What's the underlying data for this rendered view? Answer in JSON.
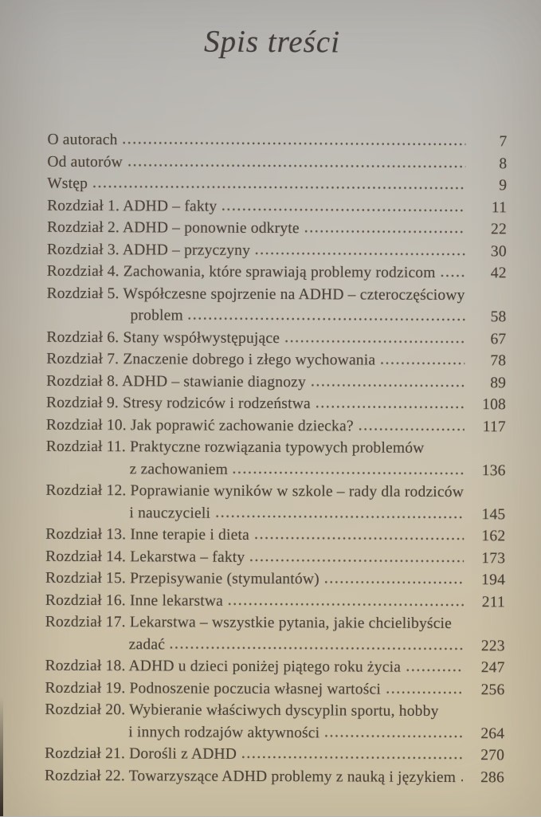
{
  "toc": {
    "title": "Spis treści",
    "entries": [
      {
        "label": "O autorach",
        "page": "7"
      },
      {
        "label": "Od autorów",
        "page": "8"
      },
      {
        "label": "Wstęp",
        "page": "9"
      },
      {
        "label": "Rozdział 1. ADHD – fakty",
        "page": "11"
      },
      {
        "label": "Rozdział 2. ADHD – ponownie odkryte",
        "page": "22"
      },
      {
        "label": "Rozdział 3. ADHD – przyczyny",
        "page": "30"
      },
      {
        "label": "Rozdział 4. Zachowania, które sprawiają problemy rodzicom",
        "page": "42"
      },
      {
        "label": "Rozdział 5. Współczesne spojrzenie na ADHD – czteroczęściowy",
        "label2": "problem",
        "page": "58"
      },
      {
        "label": "Rozdział 6. Stany współwystępujące",
        "page": "67"
      },
      {
        "label": "Rozdział 7. Znaczenie dobrego i złego wychowania",
        "page": "78"
      },
      {
        "label": "Rozdział 8. ADHD – stawianie diagnozy",
        "page": "89"
      },
      {
        "label": "Rozdział 9. Stresy rodziców i rodzeństwa",
        "page": "108"
      },
      {
        "label": "Rozdział 10. Jak poprawić zachowanie dziecka?",
        "page": "117"
      },
      {
        "label": "Rozdział 11. Praktyczne rozwiązania typowych problemów",
        "label2": "z zachowaniem",
        "page": "136"
      },
      {
        "label": "Rozdział 12. Poprawianie wyników w szkole – rady dla rodziców",
        "label2": "i nauczycieli",
        "page": "145"
      },
      {
        "label": "Rozdział 13. Inne terapie i dieta",
        "page": "162"
      },
      {
        "label": "Rozdział 14. Lekarstwa – fakty",
        "page": "173"
      },
      {
        "label": "Rozdział 15. Przepisywanie (stymulantów)",
        "page": "194"
      },
      {
        "label": "Rozdział 16. Inne lekarstwa",
        "page": "211"
      },
      {
        "label": "Rozdział 17. Lekarstwa – wszystkie pytania, jakie chcielibyście",
        "label2": "zadać",
        "page": "223"
      },
      {
        "label": "Rozdział 18. ADHD u dzieci poniżej piątego roku życia",
        "page": "247"
      },
      {
        "label": "Rozdział 19. Podnoszenie poczucia własnej wartości",
        "page": "256"
      },
      {
        "label": "Rozdział 20. Wybieranie właściwych dyscyplin sportu, hobby",
        "label2": "i innych rodzajów aktywności",
        "page": "264"
      },
      {
        "label": "Rozdział 21. Dorośli z ADHD",
        "page": "270"
      },
      {
        "label": "Rozdział 22. Towarzyszące ADHD problemy z nauką i językiem",
        "page": "286"
      }
    ],
    "colors": {
      "paper_top": "#b2b1af",
      "paper_bottom": "#cfc3a6",
      "ink": "#4a4238"
    }
  }
}
